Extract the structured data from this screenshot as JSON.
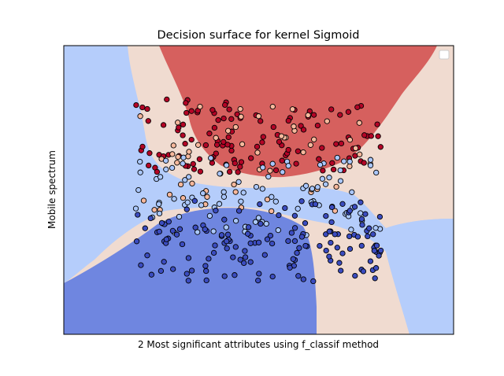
{
  "chart_data": {
    "type": "scatter",
    "title": "Decision surface for kernel Sigmoid",
    "xlabel": "2 Most significant attributes using f_classif method",
    "ylabel": "Mobile spectrum",
    "xticks": "none",
    "yticks": "none",
    "grid": false,
    "legend": {
      "placement": "top-right",
      "entries": []
    },
    "xlim": [
      0,
      100
    ],
    "ylim": [
      0,
      100
    ],
    "region_colors": {
      "class_0": "#6f86e0",
      "class_1": "#b5cdfb",
      "class_2": "#f0dbd0",
      "class_3": "#d6605e"
    },
    "point_colors": {
      "class_0": "#3b4cc0",
      "class_1": "#aac7fd",
      "class_2": "#f7b89c",
      "class_3": "#b40426"
    }
  }
}
